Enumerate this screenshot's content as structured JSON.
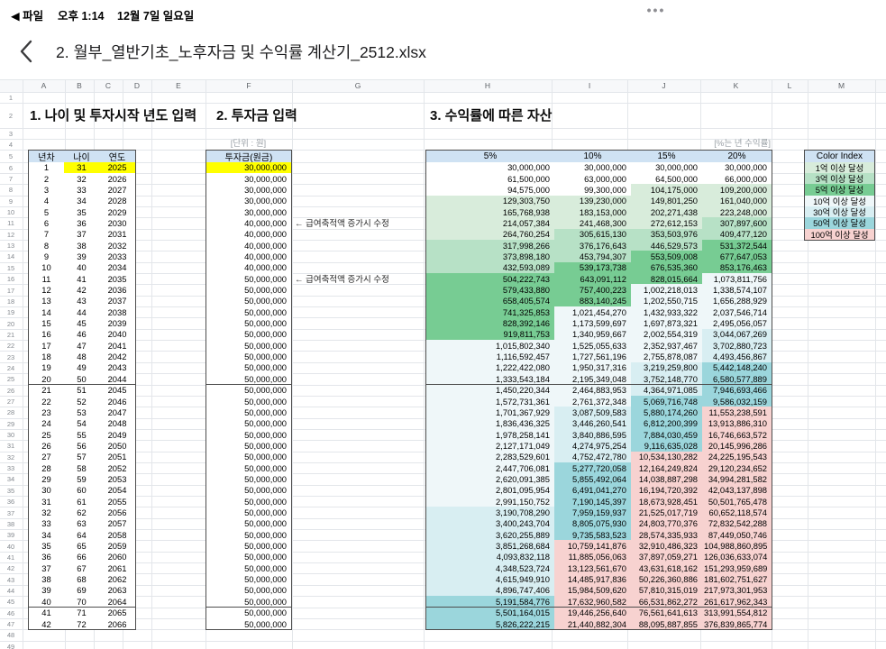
{
  "status_bar": {
    "back_icon": "◀",
    "file_label": "파일",
    "time": "오후 1:14",
    "date": "12월 7일 일요일",
    "more_icon": "•••"
  },
  "title_bar": {
    "title": "2. 월부_열반기초_노후자금 및 수익률 계산기_2512.xlsx"
  },
  "sheet": {
    "column_letters": [
      "A",
      "B",
      "C",
      "D",
      "E",
      "F",
      "G",
      "H",
      "I",
      "J",
      "K",
      "L",
      "M"
    ],
    "visible_row_numbers": 49,
    "section1_title": "1. 나이 및 투자시작 년도 입력",
    "section2_title": "2. 투자금 입력",
    "section3_title": "3. 수익률에 따른 자산",
    "unit_note": "[단위 : 원]",
    "rate_note": "[%는 년 수익률]",
    "header_fill": "#cfe2f3",
    "highlight_color": "#ffff00",
    "left_table_headers": [
      "년차",
      "나이",
      "연도"
    ],
    "principal_header": "투자금(원금)",
    "rate_headers": [
      "5%",
      "10%",
      "15%",
      "20%"
    ],
    "color_index": {
      "header": "Color Index",
      "entries": [
        {
          "label": "1억 이상 달성",
          "color": "#d8ecdb",
          "threshold": 100000000
        },
        {
          "label": "3억 이상 달성",
          "color": "#b7e1c6",
          "threshold": 300000000
        },
        {
          "label": "5억 이상 달성",
          "color": "#77cc93",
          "threshold": 500000000
        },
        {
          "label": "10억 이상 달성",
          "color": "#eff7f9",
          "threshold": 1000000000
        },
        {
          "label": "30억 이상 달성",
          "color": "#d8eef2",
          "threshold": 3000000000
        },
        {
          "label": "50억 이상 달성",
          "color": "#9bd6dc",
          "threshold": 5000000000
        },
        {
          "label": "100억 이상 달성",
          "color": "#f7d2d0",
          "threshold": 10000000000
        }
      ]
    },
    "notes": [
      {
        "data_row": 6,
        "text": "← 급여축적액 증가시 수정"
      },
      {
        "data_row": 11,
        "text": "← 급여축적액 증가시 수정"
      }
    ],
    "rows": [
      {
        "n": 1,
        "age": 31,
        "year": 2025,
        "principal": "30,000,000",
        "values": [
          "30,000,000",
          "30,000,000",
          "30,000,000",
          "30,000,000"
        ]
      },
      {
        "n": 2,
        "age": 32,
        "year": 2026,
        "principal": "30,000,000",
        "values": [
          "61,500,000",
          "63,000,000",
          "64,500,000",
          "66,000,000"
        ]
      },
      {
        "n": 3,
        "age": 33,
        "year": 2027,
        "principal": "30,000,000",
        "values": [
          "94,575,000",
          "99,300,000",
          "104,175,000",
          "109,200,000"
        ]
      },
      {
        "n": 4,
        "age": 34,
        "year": 2028,
        "principal": "30,000,000",
        "values": [
          "129,303,750",
          "139,230,000",
          "149,801,250",
          "161,040,000"
        ]
      },
      {
        "n": 5,
        "age": 35,
        "year": 2029,
        "principal": "30,000,000",
        "values": [
          "165,768,938",
          "183,153,000",
          "202,271,438",
          "223,248,000"
        ]
      },
      {
        "n": 6,
        "age": 36,
        "year": 2030,
        "principal": "40,000,000",
        "values": [
          "214,057,384",
          "241,468,300",
          "272,612,153",
          "307,897,600"
        ]
      },
      {
        "n": 7,
        "age": 37,
        "year": 2031,
        "principal": "40,000,000",
        "values": [
          "264,760,254",
          "305,615,130",
          "353,503,976",
          "409,477,120"
        ]
      },
      {
        "n": 8,
        "age": 38,
        "year": 2032,
        "principal": "40,000,000",
        "values": [
          "317,998,266",
          "376,176,643",
          "446,529,573",
          "531,372,544"
        ]
      },
      {
        "n": 9,
        "age": 39,
        "year": 2033,
        "principal": "40,000,000",
        "values": [
          "373,898,180",
          "453,794,307",
          "553,509,008",
          "677,647,053"
        ]
      },
      {
        "n": 10,
        "age": 40,
        "year": 2034,
        "principal": "40,000,000",
        "values": [
          "432,593,089",
          "539,173,738",
          "676,535,360",
          "853,176,463"
        ]
      },
      {
        "n": 11,
        "age": 41,
        "year": 2035,
        "principal": "50,000,000",
        "values": [
          "504,222,743",
          "643,091,112",
          "828,015,664",
          "1,073,811,756"
        ]
      },
      {
        "n": 12,
        "age": 42,
        "year": 2036,
        "principal": "50,000,000",
        "values": [
          "579,433,880",
          "757,400,223",
          "1,002,218,013",
          "1,338,574,107"
        ]
      },
      {
        "n": 13,
        "age": 43,
        "year": 2037,
        "principal": "50,000,000",
        "values": [
          "658,405,574",
          "883,140,245",
          "1,202,550,715",
          "1,656,288,929"
        ]
      },
      {
        "n": 14,
        "age": 44,
        "year": 2038,
        "principal": "50,000,000",
        "values": [
          "741,325,853",
          "1,021,454,270",
          "1,432,933,322",
          "2,037,546,714"
        ]
      },
      {
        "n": 15,
        "age": 45,
        "year": 2039,
        "principal": "50,000,000",
        "values": [
          "828,392,146",
          "1,173,599,697",
          "1,697,873,321",
          "2,495,056,057"
        ]
      },
      {
        "n": 16,
        "age": 46,
        "year": 2040,
        "principal": "50,000,000",
        "values": [
          "919,811,753",
          "1,340,959,667",
          "2,002,554,319",
          "3,044,067,269"
        ]
      },
      {
        "n": 17,
        "age": 47,
        "year": 2041,
        "principal": "50,000,000",
        "values": [
          "1,015,802,340",
          "1,525,055,633",
          "2,352,937,467",
          "3,702,880,723"
        ]
      },
      {
        "n": 18,
        "age": 48,
        "year": 2042,
        "principal": "50,000,000",
        "values": [
          "1,116,592,457",
          "1,727,561,196",
          "2,755,878,087",
          "4,493,456,867"
        ]
      },
      {
        "n": 19,
        "age": 49,
        "year": 2043,
        "principal": "50,000,000",
        "values": [
          "1,222,422,080",
          "1,950,317,316",
          "3,219,259,800",
          "5,442,148,240"
        ]
      },
      {
        "n": 20,
        "age": 50,
        "year": 2044,
        "principal": "50,000,000",
        "values": [
          "1,333,543,184",
          "2,195,349,048",
          "3,752,148,770",
          "6,580,577,889"
        ]
      },
      {
        "n": 21,
        "age": 51,
        "year": 2045,
        "principal": "50,000,000",
        "values": [
          "1,450,220,344",
          "2,464,883,953",
          "4,364,971,085",
          "7,946,693,466"
        ]
      },
      {
        "n": 22,
        "age": 52,
        "year": 2046,
        "principal": "50,000,000",
        "values": [
          "1,572,731,361",
          "2,761,372,348",
          "5,069,716,748",
          "9,586,032,159"
        ]
      },
      {
        "n": 23,
        "age": 53,
        "year": 2047,
        "principal": "50,000,000",
        "values": [
          "1,701,367,929",
          "3,087,509,583",
          "5,880,174,260",
          "11,553,238,591"
        ]
      },
      {
        "n": 24,
        "age": 54,
        "year": 2048,
        "principal": "50,000,000",
        "values": [
          "1,836,436,325",
          "3,446,260,541",
          "6,812,200,399",
          "13,913,886,310"
        ]
      },
      {
        "n": 25,
        "age": 55,
        "year": 2049,
        "principal": "50,000,000",
        "values": [
          "1,978,258,141",
          "3,840,886,595",
          "7,884,030,459",
          "16,746,663,572"
        ]
      },
      {
        "n": 26,
        "age": 56,
        "year": 2050,
        "principal": "50,000,000",
        "values": [
          "2,127,171,049",
          "4,274,975,254",
          "9,116,635,028",
          "20,145,996,286"
        ]
      },
      {
        "n": 27,
        "age": 57,
        "year": 2051,
        "principal": "50,000,000",
        "values": [
          "2,283,529,601",
          "4,752,472,780",
          "10,534,130,282",
          "24,225,195,543"
        ]
      },
      {
        "n": 28,
        "age": 58,
        "year": 2052,
        "principal": "50,000,000",
        "values": [
          "2,447,706,081",
          "5,277,720,058",
          "12,164,249,824",
          "29,120,234,652"
        ]
      },
      {
        "n": 29,
        "age": 59,
        "year": 2053,
        "principal": "50,000,000",
        "values": [
          "2,620,091,385",
          "5,855,492,064",
          "14,038,887,298",
          "34,994,281,582"
        ]
      },
      {
        "n": 30,
        "age": 60,
        "year": 2054,
        "principal": "50,000,000",
        "values": [
          "2,801,095,954",
          "6,491,041,270",
          "16,194,720,392",
          "42,043,137,898"
        ]
      },
      {
        "n": 31,
        "age": 61,
        "year": 2055,
        "principal": "50,000,000",
        "values": [
          "2,991,150,752",
          "7,190,145,397",
          "18,673,928,451",
          "50,501,765,478"
        ]
      },
      {
        "n": 32,
        "age": 62,
        "year": 2056,
        "principal": "50,000,000",
        "values": [
          "3,190,708,290",
          "7,959,159,937",
          "21,525,017,719",
          "60,652,118,574"
        ]
      },
      {
        "n": 33,
        "age": 63,
        "year": 2057,
        "principal": "50,000,000",
        "values": [
          "3,400,243,704",
          "8,805,075,930",
          "24,803,770,376",
          "72,832,542,288"
        ]
      },
      {
        "n": 34,
        "age": 64,
        "year": 2058,
        "principal": "50,000,000",
        "values": [
          "3,620,255,889",
          "9,735,583,523",
          "28,574,335,933",
          "87,449,050,746"
        ]
      },
      {
        "n": 35,
        "age": 65,
        "year": 2059,
        "principal": "50,000,000",
        "values": [
          "3,851,268,684",
          "10,759,141,876",
          "32,910,486,323",
          "104,988,860,895"
        ]
      },
      {
        "n": 36,
        "age": 66,
        "year": 2060,
        "principal": "50,000,000",
        "values": [
          "4,093,832,118",
          "11,885,056,063",
          "37,897,059,271",
          "126,036,633,074"
        ]
      },
      {
        "n": 37,
        "age": 67,
        "year": 2061,
        "principal": "50,000,000",
        "values": [
          "4,348,523,724",
          "13,123,561,670",
          "43,631,618,162",
          "151,293,959,689"
        ]
      },
      {
        "n": 38,
        "age": 68,
        "year": 2062,
        "principal": "50,000,000",
        "values": [
          "4,615,949,910",
          "14,485,917,836",
          "50,226,360,886",
          "181,602,751,627"
        ]
      },
      {
        "n": 39,
        "age": 69,
        "year": 2063,
        "principal": "50,000,000",
        "values": [
          "4,896,747,406",
          "15,984,509,620",
          "57,810,315,019",
          "217,973,301,953"
        ]
      },
      {
        "n": 40,
        "age": 70,
        "year": 2064,
        "principal": "50,000,000",
        "values": [
          "5,191,584,776",
          "17,632,960,582",
          "66,531,862,272",
          "261,617,962,343"
        ]
      },
      {
        "n": 41,
        "age": 71,
        "year": 2065,
        "principal": "50,000,000",
        "values": [
          "5,501,164,015",
          "19,446,256,640",
          "76,561,641,613",
          "313,991,554,812"
        ]
      },
      {
        "n": 42,
        "age": 72,
        "year": 2066,
        "principal": "50,000,000",
        "values": [
          "5,826,222,215",
          "21,440,882,304",
          "88,095,887,855",
          "376,839,865,774"
        ]
      }
    ]
  }
}
